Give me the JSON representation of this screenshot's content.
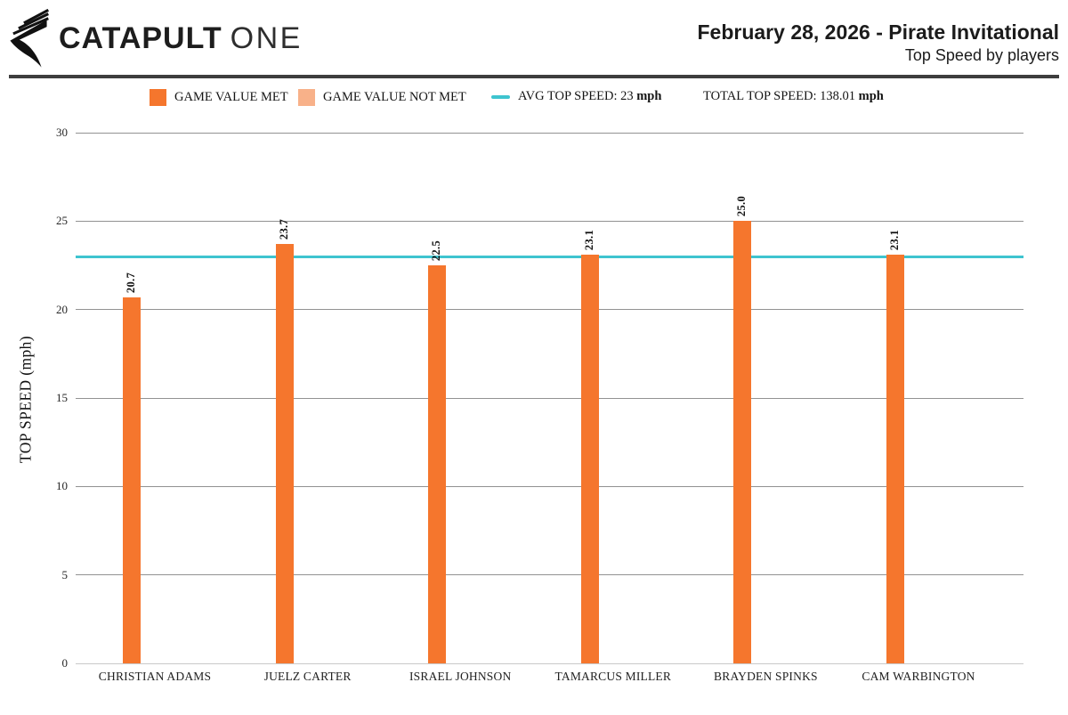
{
  "header": {
    "logo_primary": "CATAPULT",
    "logo_secondary": "ONE",
    "title": "February 28, 2026 - Pirate Invitational",
    "subtitle": "Top Speed by players"
  },
  "legend": {
    "met_label": "GAME VALUE MET",
    "not_met_label": "GAME VALUE NOT MET",
    "avg_label": "AVG TOP SPEED: 23",
    "avg_unit": "mph",
    "total_label": "TOTAL TOP SPEED: 138.01",
    "total_unit": "mph"
  },
  "colors": {
    "game_value_met": "#F5762D",
    "game_value_not_met": "#F8B189",
    "avg_line": "#3EC4CF",
    "divider": "#3E3E3E",
    "grid": "#929292",
    "baseline": "#C9C9C9"
  },
  "chart_data": {
    "type": "bar",
    "title": "Top Speed by players",
    "xlabel": "",
    "ylabel": "TOP SPEED (mph)",
    "ylim": [
      0,
      30
    ],
    "yticks": [
      0,
      5,
      10,
      15,
      20,
      25,
      30
    ],
    "grid": true,
    "legend_position": "top",
    "categories": [
      "CHRISTIAN ADAMS",
      "JUELZ CARTER",
      "ISRAEL JOHNSON",
      "TAMARCUS MILLER",
      "BRAYDEN SPINKS",
      "CAM WARBINGTON"
    ],
    "series": [
      {
        "name": "GAME VALUE MET",
        "values": [
          20.7,
          23.7,
          22.5,
          23.1,
          25.0,
          23.1
        ]
      }
    ],
    "bar_value_labels": [
      "20.7",
      "23.7",
      "22.5",
      "23.1",
      "25.0",
      "23.1"
    ],
    "avg_top_speed": 23,
    "total_top_speed": 138.01
  }
}
